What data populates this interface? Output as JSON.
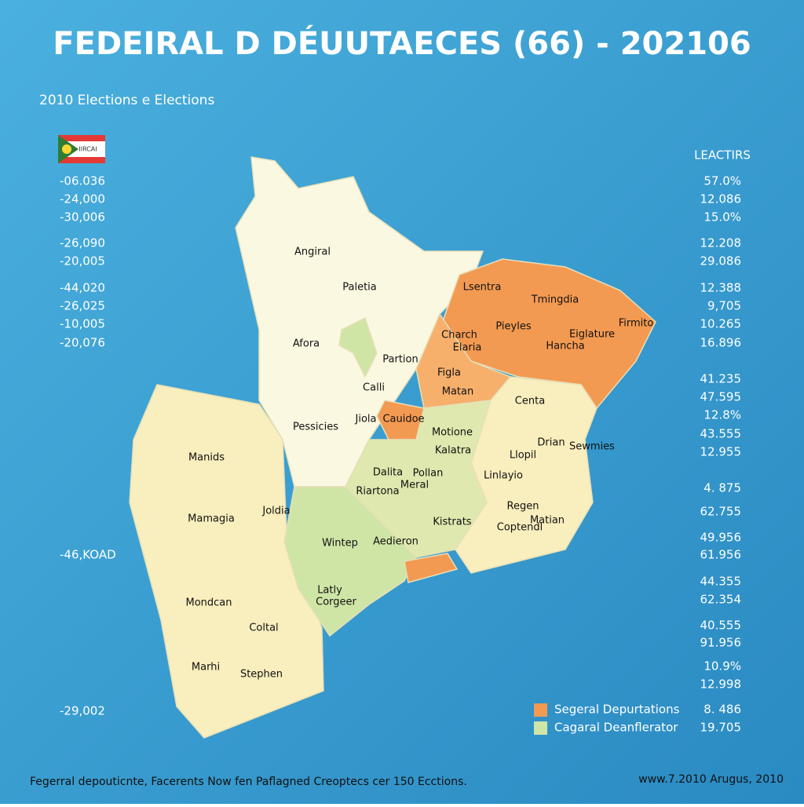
{
  "header": {
    "title": "FEDEIRAL D DÉUUTAECES (66) - 202106",
    "subtitle": "2010 Elections e Elections"
  },
  "flag": {
    "label": "IIRCAI"
  },
  "left_scale": [
    "-06.036",
    "-24,000",
    "-30,006",
    "-26,090",
    "-20,005",
    "-44,020",
    "-26,025",
    "-10,005",
    "-20,076",
    "-46,KOAD",
    "-29,002"
  ],
  "right_panel": {
    "title": "LEACTIRS",
    "values": [
      "57.0%",
      "12.086",
      "15.0%",
      "12.208",
      "29.086",
      "12.388",
      "9,705",
      "10.265",
      "16.896",
      "41.235",
      "47.595",
      "12.8%",
      "43.555",
      "12.955",
      "4. 875",
      "62.755",
      "49.956",
      "61.956",
      "44.355",
      "62.354",
      "40.555",
      "91.956",
      "10.9%",
      "12.998",
      "8. 486",
      "19.705"
    ]
  },
  "regions": [
    "Angiral",
    "Paletia",
    "Afora",
    "Partion",
    "Calli",
    "Pessicies",
    "Jiola",
    "Cauidoe",
    "Lsentra",
    "Tmingdia",
    "Pieyles",
    "Eiglature",
    "Firmito",
    "Charch",
    "Elaria",
    "Hancha",
    "Figla",
    "Matan",
    "Centa",
    "Motione",
    "Kalatra",
    "Drian",
    "Sewmies",
    "Llopil",
    "Dalita",
    "Pollan",
    "Meral",
    "Riartona",
    "Linlayio",
    "Manids",
    "Mamagia",
    "Joldia",
    "Regen",
    "Kistrats",
    "Matian",
    "Coptendl",
    "Wintep",
    "Aedieron",
    "Latly",
    "Corgeer",
    "Mondcan",
    "Coltal",
    "Marhi",
    "Stephen"
  ],
  "legend": [
    {
      "label": "Segeral Depurtations",
      "color": "#f39a52"
    },
    {
      "label": "Cagaral Deanflerator",
      "color": "#cfe5a6"
    }
  ],
  "footer": {
    "left": "Fegerral depouticnte, Facerents Now fen Paflagned Creoptecs cer 150 Ecctions.",
    "right": "www.7.2010 Arugus, 2010"
  }
}
